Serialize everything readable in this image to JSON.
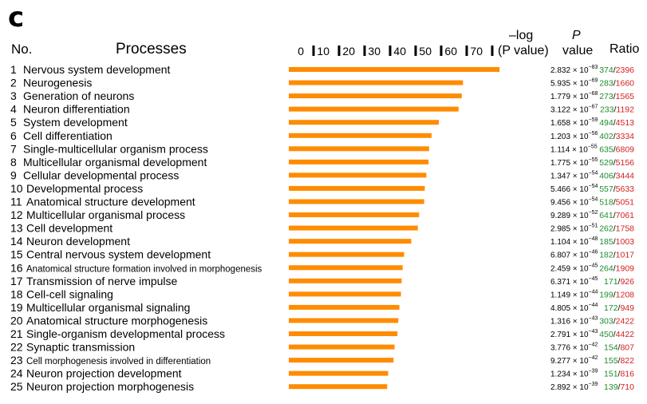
{
  "panel_letter": "c",
  "header": {
    "no": "No.",
    "processes": "Processes",
    "neglog_line1": "–log",
    "neglog_line2": "(P value)",
    "p_line1": "P",
    "p_line2": "value",
    "ratio": "Ratio"
  },
  "colors": {
    "bar": "#ff8c00",
    "ratio_num": "#1e8c2e",
    "ratio_den": "#d42020"
  },
  "chart_data": {
    "type": "bar",
    "orientation": "horizontal",
    "xlim": [
      0,
      80
    ],
    "ticks": [
      0,
      10,
      20,
      30,
      40,
      50,
      60,
      70
    ],
    "tick_labels": [
      "0",
      "10",
      "20",
      "30",
      "40",
      "50",
      "60",
      "70"
    ],
    "grid": false,
    "rows": [
      {
        "no": "1",
        "process": "Nervous system development",
        "neglogp": 82.55,
        "p_mant": "2.832",
        "p_exp": "−83",
        "ratio_num": "374",
        "ratio_den": "2396"
      },
      {
        "no": "2",
        "process": "Neurogenesis",
        "neglogp": 68.23,
        "p_mant": "5.935",
        "p_exp": "−69",
        "ratio_num": "283",
        "ratio_den": "1660"
      },
      {
        "no": "3",
        "process": "Generation of neurons",
        "neglogp": 67.75,
        "p_mant": "1.779",
        "p_exp": "−68",
        "ratio_num": "273",
        "ratio_den": "1565"
      },
      {
        "no": "4",
        "process": "Neuron differentiation",
        "neglogp": 66.51,
        "p_mant": "3.122",
        "p_exp": "−67",
        "ratio_num": "233",
        "ratio_den": "1192"
      },
      {
        "no": "5",
        "process": "System development",
        "neglogp": 58.78,
        "p_mant": "1.658",
        "p_exp": "−59",
        "ratio_num": "494",
        "ratio_den": "4513"
      },
      {
        "no": "6",
        "process": "Cell differentiation",
        "neglogp": 55.92,
        "p_mant": "1.203",
        "p_exp": "−56",
        "ratio_num": "402",
        "ratio_den": "3334"
      },
      {
        "no": "7",
        "process": "Single-multicellular organism process",
        "neglogp": 54.95,
        "p_mant": "1.114",
        "p_exp": "−55",
        "ratio_num": "635",
        "ratio_den": "6809"
      },
      {
        "no": "8",
        "process": "Multicellular organismal development",
        "neglogp": 54.75,
        "p_mant": "1.775",
        "p_exp": "−55",
        "ratio_num": "529",
        "ratio_den": "5156"
      },
      {
        "no": "9",
        "process": "Cellular developmental process",
        "neglogp": 53.87,
        "p_mant": "1.347",
        "p_exp": "−54",
        "ratio_num": "406",
        "ratio_den": "3444"
      },
      {
        "no": "10",
        "process": "Developmental process",
        "neglogp": 53.26,
        "p_mant": "5.466",
        "p_exp": "−54",
        "ratio_num": "557",
        "ratio_den": "5633"
      },
      {
        "no": "11",
        "process": "Anatomical structure development",
        "neglogp": 53.02,
        "p_mant": "9.456",
        "p_exp": "−54",
        "ratio_num": "518",
        "ratio_den": "5051"
      },
      {
        "no": "12",
        "process": "Multicellular organismal process",
        "neglogp": 51.03,
        "p_mant": "9.289",
        "p_exp": "−52",
        "ratio_num": "641",
        "ratio_den": "7061"
      },
      {
        "no": "13",
        "process": "Cell development",
        "neglogp": 50.53,
        "p_mant": "2.985",
        "p_exp": "−51",
        "ratio_num": "262",
        "ratio_den": "1758"
      },
      {
        "no": "14",
        "process": "Neuron development",
        "neglogp": 47.96,
        "p_mant": "1.104",
        "p_exp": "−48",
        "ratio_num": "185",
        "ratio_den": "1003"
      },
      {
        "no": "15",
        "process": "Central nervous system development",
        "neglogp": 45.17,
        "p_mant": "6.807",
        "p_exp": "−46",
        "ratio_num": "182",
        "ratio_den": "1017"
      },
      {
        "no": "16",
        "process": "Anatomical structure formation involved in morphogenesis",
        "neglogp": 44.61,
        "p_mant": "2.459",
        "p_exp": "−45",
        "ratio_num": "264",
        "ratio_den": "1909"
      },
      {
        "no": "17",
        "process": "Transmission of nerve impulse",
        "neglogp": 44.2,
        "p_mant": "6.371",
        "p_exp": "−45",
        "ratio_num": "171",
        "ratio_den": "926"
      },
      {
        "no": "18",
        "process": "Cell-cell signaling",
        "neglogp": 43.94,
        "p_mant": "1.149",
        "p_exp": "−44",
        "ratio_num": "199",
        "ratio_den": "1208"
      },
      {
        "no": "19",
        "process": "Multicellular organismal signaling",
        "neglogp": 43.32,
        "p_mant": "4.805",
        "p_exp": "−44",
        "ratio_num": "172",
        "ratio_den": "949"
      },
      {
        "no": "20",
        "process": "Anatomical structure morphogenesis",
        "neglogp": 42.88,
        "p_mant": "1.316",
        "p_exp": "−43",
        "ratio_num": "303",
        "ratio_den": "2422"
      },
      {
        "no": "21",
        "process": "Single-organism developmental process",
        "neglogp": 42.55,
        "p_mant": "2.791",
        "p_exp": "−43",
        "ratio_num": "450",
        "ratio_den": "4422"
      },
      {
        "no": "22",
        "process": "Synaptic transmission",
        "neglogp": 41.42,
        "p_mant": "3.776",
        "p_exp": "−42",
        "ratio_num": "154",
        "ratio_den": "807"
      },
      {
        "no": "23",
        "process": "Cell morphogenesis involved in differentiation",
        "neglogp": 41.03,
        "p_mant": "9.277",
        "p_exp": "−42",
        "ratio_num": "155",
        "ratio_den": "822"
      },
      {
        "no": "24",
        "process": "Neuron projection development",
        "neglogp": 38.91,
        "p_mant": "1.234",
        "p_exp": "−39",
        "ratio_num": "151",
        "ratio_den": "816"
      },
      {
        "no": "25",
        "process": "Neuron projection morphogenesis",
        "neglogp": 38.54,
        "p_mant": "2.892",
        "p_exp": "−39",
        "ratio_num": "139",
        "ratio_den": "710"
      }
    ]
  }
}
